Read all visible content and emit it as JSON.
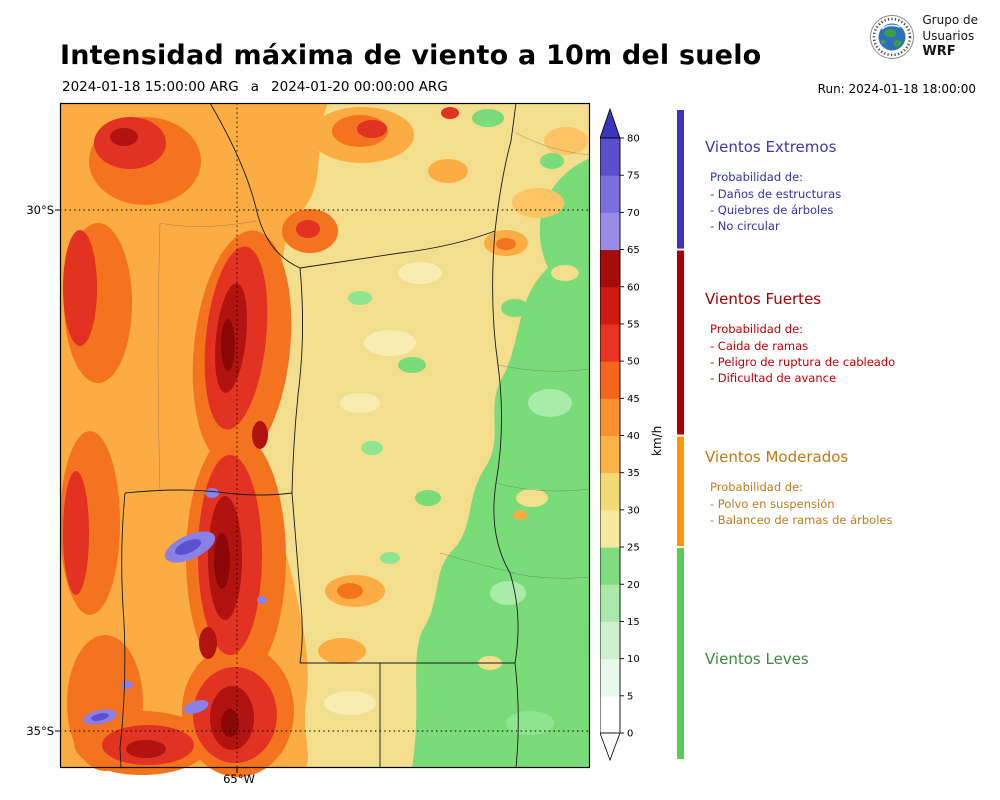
{
  "header": {
    "title": "Intensidad máxima de viento a 10m del suelo",
    "logo": {
      "line1": "Grupo de",
      "line2": "Usuarios",
      "line3": "WRF"
    }
  },
  "subtitle": {
    "valid_from": "2024-01-18 15:00:00 ARG",
    "separator": "a",
    "valid_to": "2024-01-20 00:00:00 ARG",
    "run_label": "Run: 2024-01-18 18:00:00"
  },
  "map": {
    "lat_ticks": [
      "30°S",
      "35°S"
    ],
    "lon_ticks": [
      "65°W"
    ],
    "palette": {
      "green": "#79DC79",
      "khaki": "#F2DE8C",
      "orange": "#FBAD44",
      "deep_orange": "#F4731F",
      "red": "#E23222",
      "dark_red": "#B01310",
      "extreme_purple": "#8C7FE6"
    }
  },
  "colorbar": {
    "unit": "km/h",
    "ticks": [
      0,
      5,
      10,
      15,
      20,
      25,
      30,
      35,
      40,
      45,
      50,
      55,
      60,
      65,
      70,
      75,
      80
    ],
    "segment_colors": [
      "#FFFFFF",
      "#EAF8EA",
      "#CFF0CF",
      "#ACE7AC",
      "#7FDC7F",
      "#F6EAA2",
      "#F0DB75",
      "#FBB347",
      "#F99130",
      "#F4661E",
      "#E63220",
      "#CD1A12",
      "#A30C0A",
      "#988CE8",
      "#7A6FDC",
      "#5A50CC"
    ],
    "above_color": "#3A34BE",
    "below_color": "#FFFFFF"
  },
  "legend": {
    "sections": [
      {
        "title": "Vientos Extremos",
        "title_color": "#3939AE",
        "text_color": "#3333A8",
        "bar_color": "#3A34BE",
        "min_kmh": 65,
        "prob_label": "Probabilidad de:",
        "items": [
          "- Daños de estructuras",
          "- Quiebres de árboles",
          "- No circular"
        ]
      },
      {
        "title": "Vientos Fuertes",
        "title_color": "#A00000",
        "text_color": "#C00000",
        "bar_color": "#AA0000",
        "min_kmh": 40,
        "prob_label": "Probabilidad de:",
        "items": [
          "- Caida de ramas",
          "- Peligro de ruptura de cableado",
          "- Dificultad de avance"
        ]
      },
      {
        "title": "Vientos Moderados",
        "title_color": "#C07818",
        "text_color": "#BF7B1E",
        "bar_color": "#FF9800",
        "min_kmh": 25,
        "prob_label": "Probabilidad de:",
        "items": [
          "- Polvo en suspensión",
          "- Balanceo de ramas de árboles"
        ]
      },
      {
        "title": "Vientos Leves",
        "title_color": "#3C8C3C",
        "text_color": "#3C8C3C",
        "bar_color": "#55CC55",
        "min_kmh": 0,
        "prob_label": "",
        "items": []
      }
    ]
  },
  "chart_data": {
    "type": "heatmap",
    "title": "Intensidad máxima de viento a 10m del suelo",
    "valid_from": "2024-01-18 15:00:00 ARG",
    "valid_to": "2024-01-20 00:00:00 ARG",
    "run": "2024-01-18 18:00:00",
    "unit": "km/h",
    "scale_range": [
      0,
      80
    ],
    "scale_ticks": [
      0,
      5,
      10,
      15,
      20,
      25,
      30,
      35,
      40,
      45,
      50,
      55,
      60,
      65,
      70,
      75,
      80
    ],
    "lat_ticks": [
      "30°S",
      "35°S"
    ],
    "lon_ticks": [
      "65°W"
    ],
    "categories": [
      {
        "name": "Vientos Extremos",
        "kmh_from": 65,
        "kmh_to": null
      },
      {
        "name": "Vientos Fuertes",
        "kmh_from": 40,
        "kmh_to": 65
      },
      {
        "name": "Vientos Moderados",
        "kmh_from": 25,
        "kmh_to": 40
      },
      {
        "name": "Vientos Leves",
        "kmh_from": 0,
        "kmh_to": 25
      }
    ],
    "spatial_pattern": "Strongest winds (45-80+ km/h, red/dark-red with small purple extreme spots) along western mountain band; moderate oranges in the west-center; 25-35 km/h yellows in the center; light winds (green, <25 km/h) over the eastern half"
  }
}
